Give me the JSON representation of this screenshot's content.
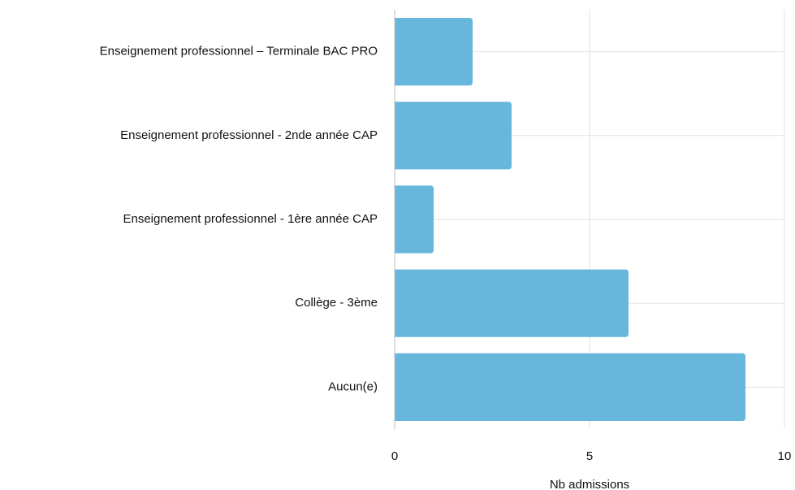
{
  "chart_data": {
    "type": "bar",
    "orientation": "horizontal",
    "categories": [
      "Enseignement professionnel – Terminale BAC PRO",
      "Enseignement professionnel - 2nde année CAP",
      "Enseignement professionnel - 1ère année CAP",
      "Collège - 3ème",
      "Aucun(e)"
    ],
    "values": [
      2,
      3,
      1,
      6,
      9
    ],
    "title": "",
    "xlabel": "Nb admissions",
    "ylabel": "",
    "xlim": [
      0,
      10
    ],
    "xticks": [
      0,
      5,
      10
    ],
    "grid": "vertical",
    "bar_color": "#67b6dc",
    "grid_color": "#e3e3e3",
    "axis_color": "#bdbdbd"
  }
}
